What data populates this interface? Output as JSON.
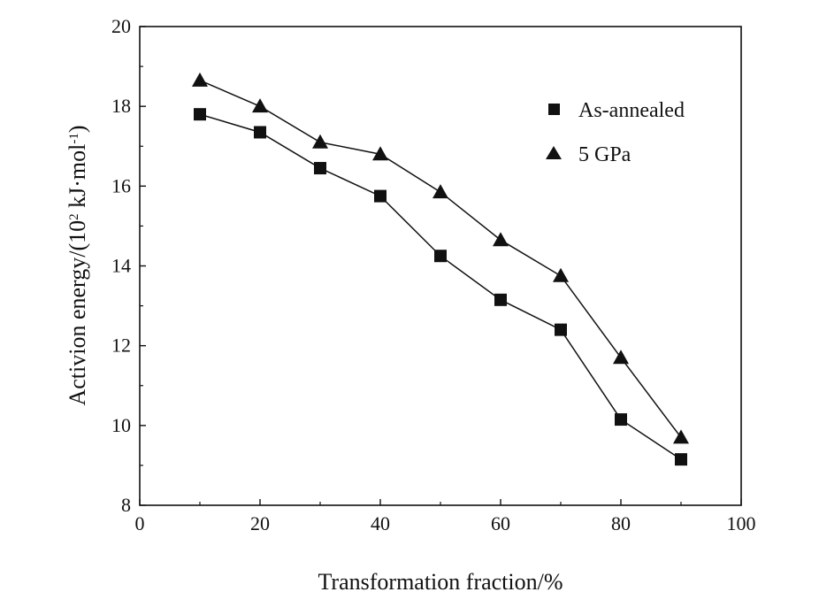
{
  "chart_data": {
    "type": "line",
    "xlabel": "Transformation fraction/%",
    "ylabel_main": "Activion energy/(10",
    "ylabel_sup1": "2",
    "ylabel_mid": " kJ·mol",
    "ylabel_sup2": "-1",
    "ylabel_end": ")",
    "xlim": [
      0,
      100
    ],
    "ylim": [
      8,
      20
    ],
    "xticks": [
      0,
      20,
      40,
      60,
      80,
      100
    ],
    "yticks": [
      8,
      10,
      12,
      14,
      16,
      18,
      20
    ],
    "grid": false,
    "legend_position": "top-right",
    "series": [
      {
        "name": "As-annealed",
        "marker": "square",
        "color": "#111111",
        "x": [
          10,
          20,
          30,
          40,
          50,
          60,
          70,
          80,
          90
        ],
        "y": [
          17.8,
          17.35,
          16.45,
          15.75,
          14.25,
          13.15,
          12.4,
          10.15,
          9.15
        ]
      },
      {
        "name": "5 GPa",
        "marker": "triangle",
        "color": "#111111",
        "x": [
          10,
          20,
          30,
          40,
          50,
          60,
          70,
          80,
          90
        ],
        "y": [
          18.65,
          18.0,
          17.1,
          16.8,
          15.85,
          14.65,
          13.75,
          11.7,
          9.7
        ]
      }
    ]
  }
}
